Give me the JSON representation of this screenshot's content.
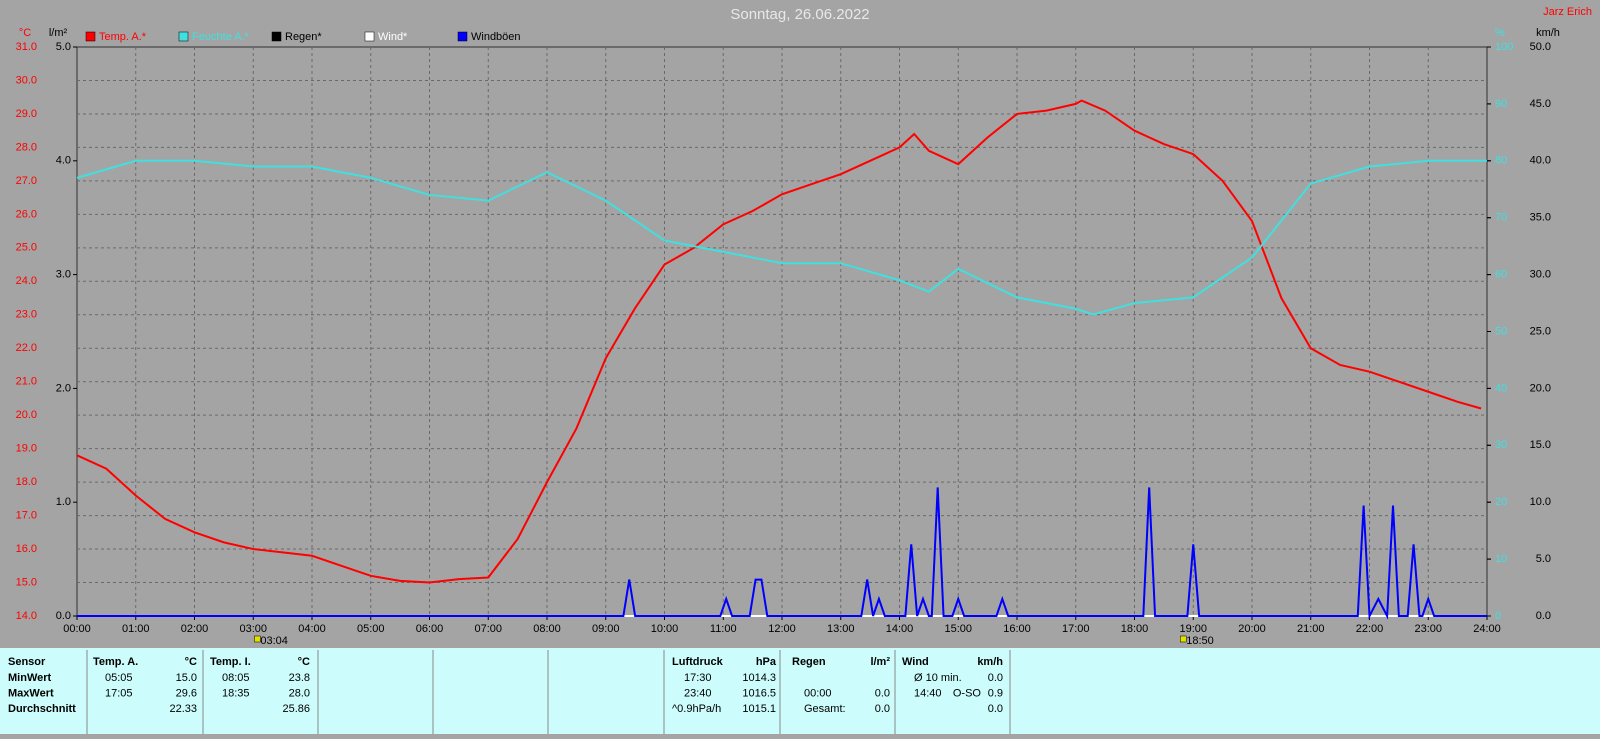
{
  "chart_data": {
    "type": "line",
    "title": "Sonntag, 26.06.2022",
    "author": "Jarz Erich",
    "y_label": "°C",
    "y2_label": "l/m²",
    "y3_label": "%",
    "y4_label": "km/h",
    "xlim": [
      0,
      24
    ],
    "xticks": [
      {
        "value": 0,
        "label": "00:00"
      },
      {
        "value": 1,
        "label": "01:00"
      },
      {
        "value": 2,
        "label": "02:00"
      },
      {
        "value": 3,
        "label": "03:00"
      },
      {
        "value": 4,
        "label": "04:00"
      },
      {
        "value": 5,
        "label": "05:00"
      },
      {
        "value": 6,
        "label": "06:00"
      },
      {
        "value": 7,
        "label": "07:00"
      },
      {
        "value": 8,
        "label": "08:00"
      },
      {
        "value": 9,
        "label": "09:00"
      },
      {
        "value": 10,
        "label": "10:00"
      },
      {
        "value": 11,
        "label": "11:00"
      },
      {
        "value": 12,
        "label": "12:00"
      },
      {
        "value": 13,
        "label": "13:00"
      },
      {
        "value": 14,
        "label": "14:00"
      },
      {
        "value": 15,
        "label": "15:00"
      },
      {
        "value": 16,
        "label": "16:00"
      },
      {
        "value": 17,
        "label": "17:00"
      },
      {
        "value": 18,
        "label": "18:00"
      },
      {
        "value": 19,
        "label": "19:00"
      },
      {
        "value": 20,
        "label": "20:00"
      },
      {
        "value": 21,
        "label": "21:00"
      },
      {
        "value": 22,
        "label": "22:00"
      },
      {
        "value": 23,
        "label": "23:00"
      },
      {
        "value": 24,
        "label": "24:00"
      }
    ],
    "ylim": [
      14,
      31
    ],
    "yticks": [
      {
        "value": 14,
        "label": "14.0"
      },
      {
        "value": 15,
        "label": "15.0"
      },
      {
        "value": 16,
        "label": "16.0"
      },
      {
        "value": 17,
        "label": "17.0"
      },
      {
        "value": 18,
        "label": "18.0"
      },
      {
        "value": 19,
        "label": "19.0"
      },
      {
        "value": 20,
        "label": "20.0"
      },
      {
        "value": 21,
        "label": "21.0"
      },
      {
        "value": 22,
        "label": "22.0"
      },
      {
        "value": 23,
        "label": "23.0"
      },
      {
        "value": 24,
        "label": "24.0"
      },
      {
        "value": 25,
        "label": "25.0"
      },
      {
        "value": 26,
        "label": "26.0"
      },
      {
        "value": 27,
        "label": "27.0"
      },
      {
        "value": 28,
        "label": "28.0"
      },
      {
        "value": 29,
        "label": "29.0"
      },
      {
        "value": 30,
        "label": "30.0"
      },
      {
        "value": 31,
        "label": "31.0"
      }
    ],
    "y2lim": [
      0,
      5
    ],
    "y2ticks": [
      {
        "value": 0,
        "label": "0.0"
      },
      {
        "value": 1,
        "label": "1.0"
      },
      {
        "value": 2,
        "label": "2.0"
      },
      {
        "value": 3,
        "label": "3.0"
      },
      {
        "value": 4,
        "label": "4.0"
      },
      {
        "value": 5,
        "label": "5.0"
      }
    ],
    "y3lim": [
      0,
      100
    ],
    "y3ticks": [
      0,
      10,
      20,
      30,
      40,
      50,
      60,
      70,
      80,
      90,
      100
    ],
    "y4lim": [
      0,
      50
    ],
    "y4ticks": [
      {
        "value": 0,
        "label": "0.0"
      },
      {
        "value": 5,
        "label": "5.0"
      },
      {
        "value": 10,
        "label": "10.0"
      },
      {
        "value": 15,
        "label": "15.0"
      },
      {
        "value": 20,
        "label": "20.0"
      },
      {
        "value": 25,
        "label": "25.0"
      },
      {
        "value": 30,
        "label": "30.0"
      },
      {
        "value": 35,
        "label": "35.0"
      },
      {
        "value": 40,
        "label": "40.0"
      },
      {
        "value": 45,
        "label": "45.0"
      },
      {
        "value": 50,
        "label": "50.0"
      }
    ],
    "grid": true,
    "annotations": [
      {
        "x": 3.07,
        "text": "03:04"
      },
      {
        "x": 18.83,
        "text": "18:50"
      }
    ],
    "series": [
      {
        "name": "Temp. A.*",
        "color": "#ff0000",
        "axis": "y",
        "x": [
          0,
          0.5,
          1,
          1.5,
          2,
          2.5,
          3,
          3.5,
          4,
          4.5,
          5,
          5.5,
          6,
          6.5,
          7,
          7.5,
          8,
          8.5,
          9,
          9.5,
          10,
          10.5,
          11,
          11.5,
          12,
          12.5,
          13,
          13.5,
          14,
          14.25,
          14.5,
          15,
          15.5,
          16,
          16.5,
          17,
          17.1,
          17.5,
          18,
          18.5,
          19,
          19.5,
          20,
          20.5,
          21,
          21.5,
          22,
          22.5,
          23,
          23.5,
          23.9
        ],
        "values": [
          18.8,
          18.4,
          17.6,
          16.9,
          16.5,
          16.2,
          16.0,
          15.9,
          15.8,
          15.5,
          15.2,
          15.05,
          15.0,
          15.1,
          15.15,
          16.3,
          18.0,
          19.6,
          21.7,
          23.2,
          24.5,
          25.0,
          25.7,
          26.1,
          26.6,
          26.9,
          27.2,
          27.6,
          28.0,
          28.4,
          27.9,
          27.5,
          28.3,
          29.0,
          29.1,
          29.3,
          29.4,
          29.1,
          28.5,
          28.1,
          27.8,
          27.0,
          25.8,
          23.5,
          22.0,
          21.5,
          21.3,
          21.0,
          20.7,
          20.4,
          20.2
        ]
      },
      {
        "name": "Feuchte A.*",
        "color": "#40e0e0",
        "axis": "y3",
        "x": [
          0,
          1,
          2,
          3,
          4,
          5,
          6,
          7,
          8,
          9,
          10,
          11,
          12,
          13,
          14,
          14.5,
          15,
          16,
          17,
          17.3,
          18,
          19,
          20,
          21,
          22,
          23,
          24
        ],
        "values": [
          77,
          80,
          80,
          79,
          79,
          77,
          74,
          73,
          78,
          73,
          66,
          64,
          62,
          62,
          59,
          57,
          61,
          56,
          54,
          53,
          55,
          56,
          63,
          76,
          79,
          80,
          80
        ]
      },
      {
        "name": "Regen*",
        "color": "#000000",
        "axis": "y2",
        "x": [
          0,
          24
        ],
        "values": [
          0,
          0
        ]
      },
      {
        "name": "Wind*",
        "color": "#ffffff",
        "axis": "y4",
        "x": [
          0,
          24
        ],
        "values": [
          0,
          0
        ]
      },
      {
        "name": "Windböen",
        "color": "#0000ff",
        "axis": "y4",
        "x": [
          0,
          9.3,
          9.4,
          9.5,
          10.95,
          11.05,
          11.15,
          11.45,
          11.55,
          11.65,
          11.75,
          13.35,
          13.45,
          13.55,
          13.65,
          13.75,
          14.1,
          14.2,
          14.3,
          14.4,
          14.5,
          14.55,
          14.65,
          14.75,
          14.9,
          15.0,
          15.1,
          15.65,
          15.75,
          15.85,
          18.15,
          18.25,
          18.35,
          18.9,
          19.0,
          19.1,
          21.8,
          21.9,
          22.0,
          22.15,
          22.3,
          22.4,
          22.5,
          22.65,
          22.75,
          22.85,
          22.9,
          23.0,
          23.1,
          24
        ],
        "values": [
          0,
          0,
          3.2,
          0,
          0,
          1.5,
          0,
          0,
          3.2,
          3.2,
          0,
          0,
          3.2,
          0,
          1.5,
          0,
          0,
          6.3,
          0,
          1.5,
          0,
          0,
          11.3,
          0,
          0,
          1.5,
          0,
          0,
          1.5,
          0,
          0,
          11.3,
          0,
          0,
          6.3,
          0,
          0,
          9.7,
          0,
          1.5,
          0,
          9.7,
          0,
          0,
          6.3,
          0,
          0,
          1.5,
          0,
          0
        ]
      }
    ],
    "legend": "top-left"
  },
  "table": {
    "blocks": [
      {
        "header": "Sensor",
        "rows": [
          [
            "MinWert"
          ],
          [
            "MaxWert"
          ],
          [
            "Durchschnitt"
          ]
        ]
      },
      {
        "header": "Temp. A.",
        "unit": "°C",
        "rows": [
          [
            "05:05",
            "15.0"
          ],
          [
            "17:05",
            "29.6"
          ],
          [
            "22.33"
          ]
        ]
      },
      {
        "header": "Temp. I.",
        "unit": "°C",
        "rows": [
          [
            "08:05",
            "23.8"
          ],
          [
            "18:35",
            "28.0"
          ],
          [
            "25.86"
          ]
        ]
      },
      {
        "header": "Luftdruck",
        "unit": "hPa",
        "rows": [
          [
            "17:30",
            "1014.3"
          ],
          [
            "23:40",
            "1016.5"
          ],
          [
            "^0.9hPa/h",
            "1015.1"
          ]
        ]
      },
      {
        "header": "Regen",
        "unit": "l/m²",
        "rows": [
          [],
          [
            "00:00",
            "0.0"
          ],
          [
            "Gesamt:",
            "0.0"
          ]
        ]
      },
      {
        "header": "Wind",
        "unit": "km/h",
        "rows": [
          [
            "Ø 10 min.",
            "0.0"
          ],
          [
            "14:40",
            "O-SO",
            "0.9"
          ],
          [
            "0.0"
          ]
        ]
      }
    ]
  }
}
